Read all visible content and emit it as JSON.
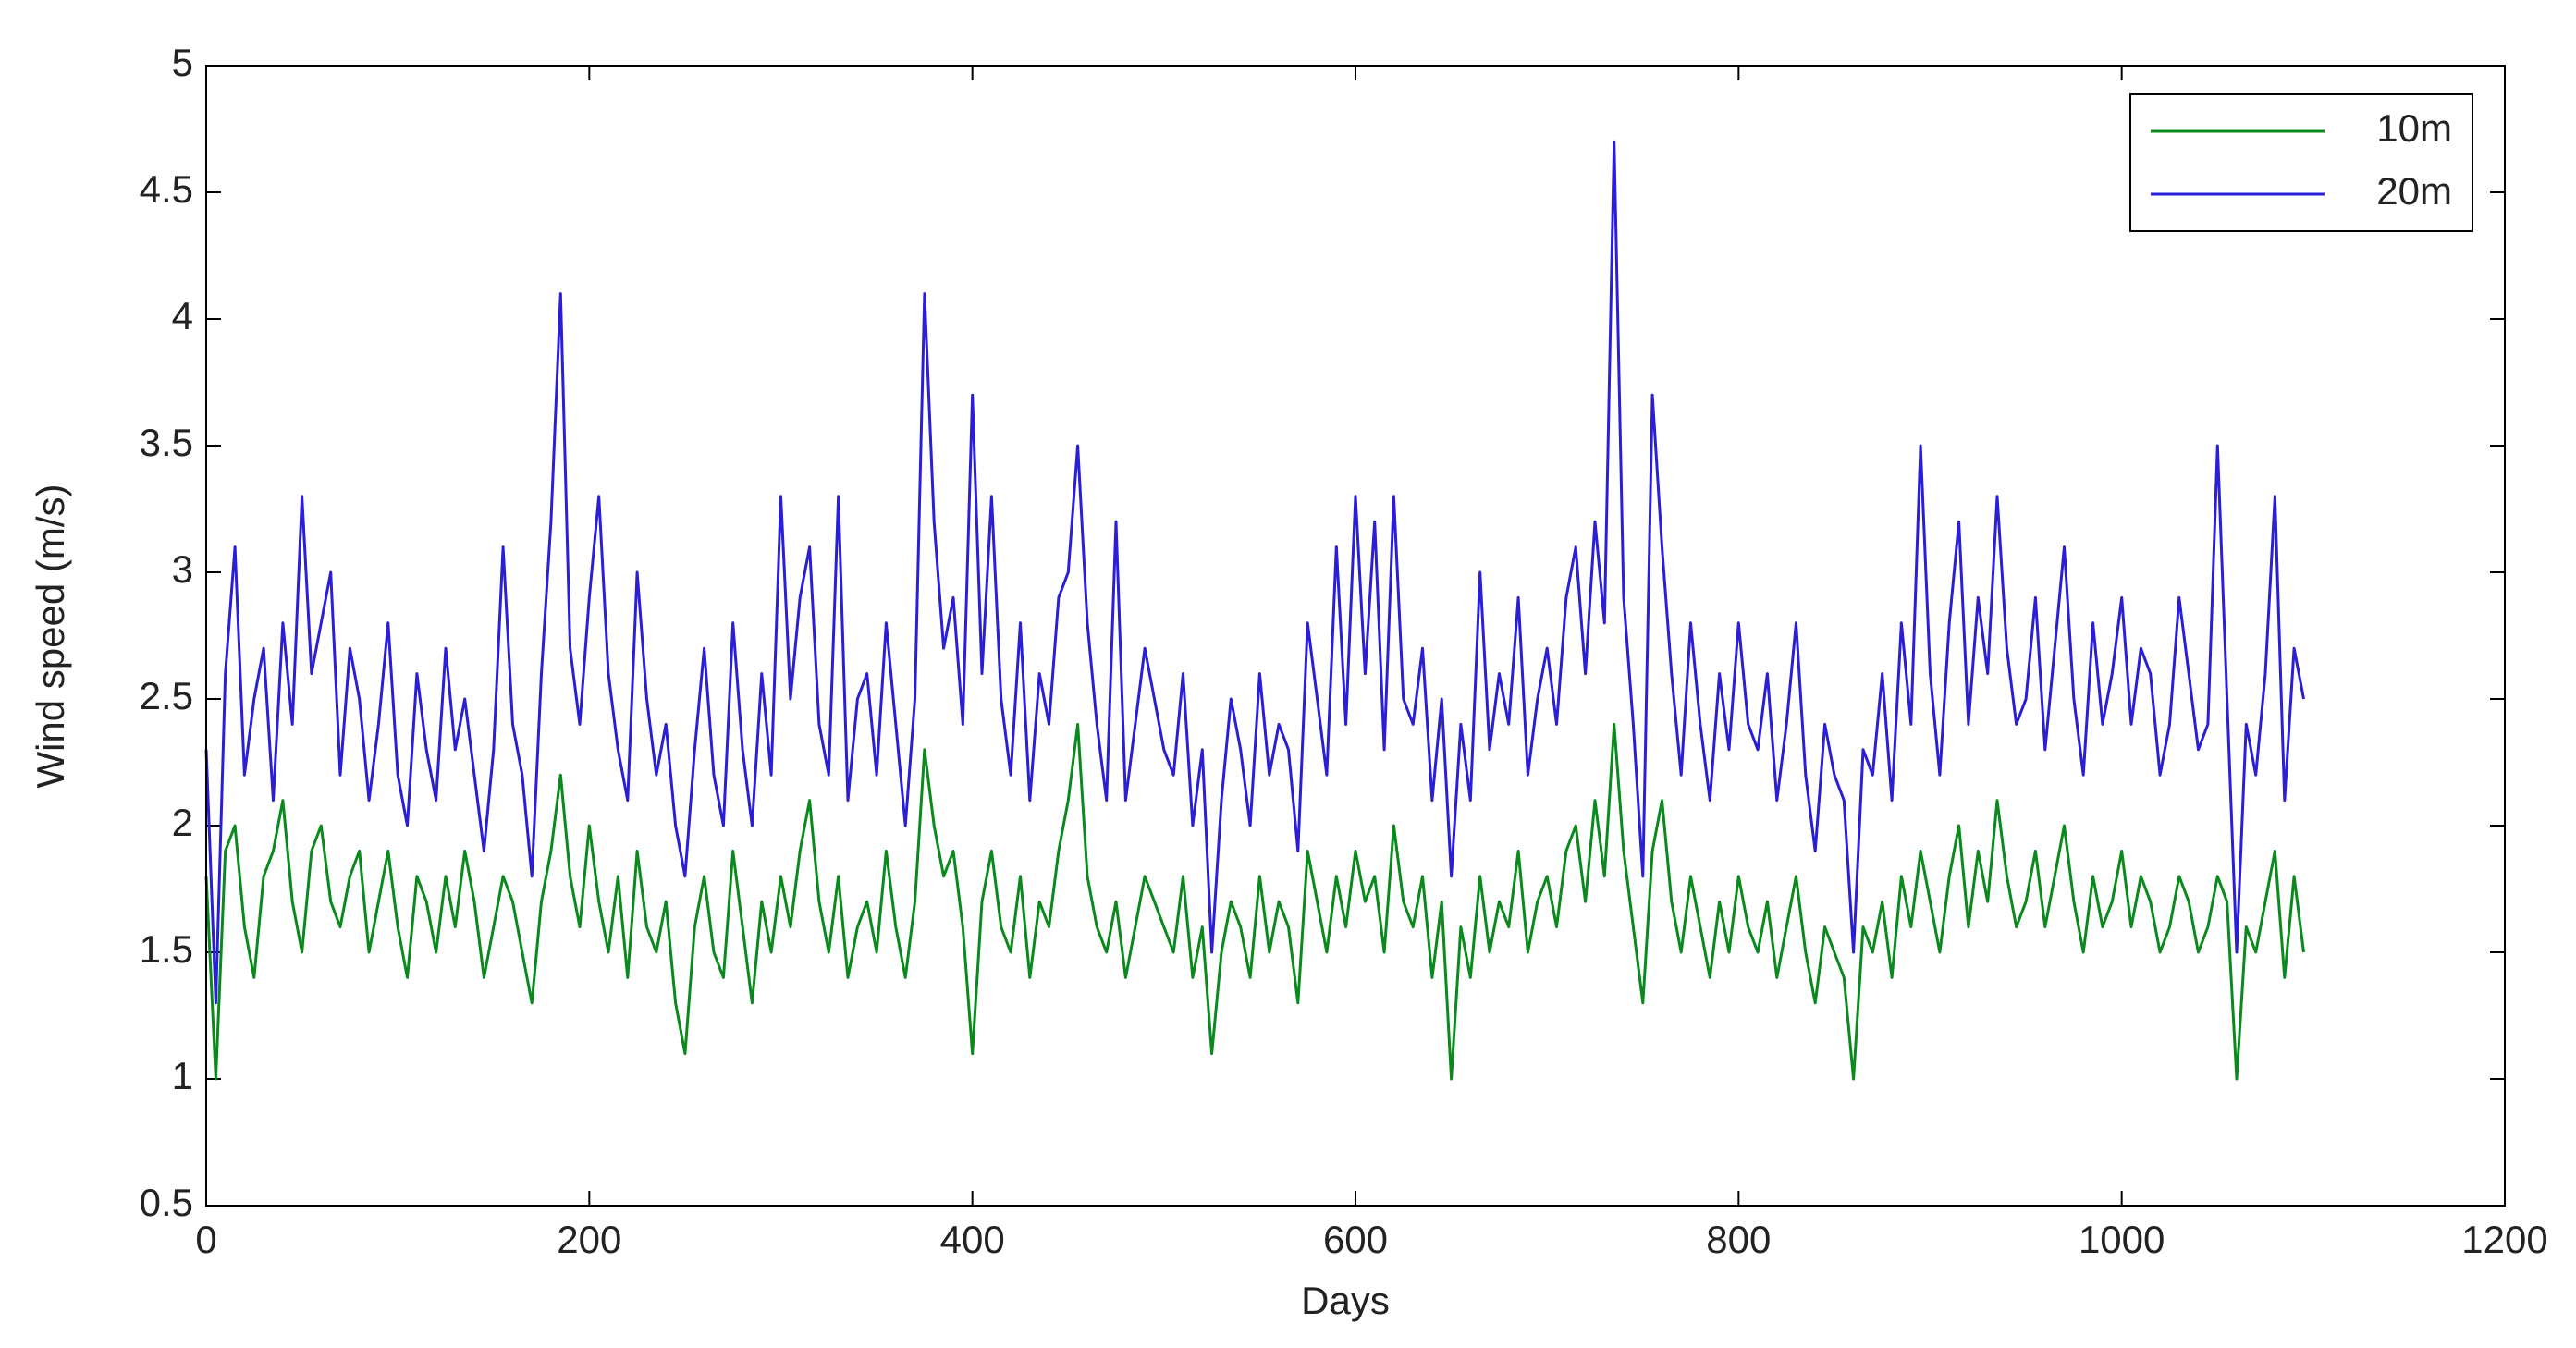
{
  "chart_data": {
    "type": "line",
    "xlabel": "Days",
    "ylabel": "Wind speed (m/s)",
    "x": [
      0,
      5,
      10,
      15,
      20,
      25,
      30,
      35,
      40,
      45,
      50,
      55,
      60,
      65,
      70,
      75,
      80,
      85,
      90,
      95,
      100,
      105,
      110,
      115,
      120,
      125,
      130,
      135,
      140,
      145,
      150,
      155,
      160,
      165,
      170,
      175,
      180,
      185,
      190,
      195,
      200,
      205,
      210,
      215,
      220,
      225,
      230,
      235,
      240,
      245,
      250,
      255,
      260,
      265,
      270,
      275,
      280,
      285,
      290,
      295,
      300,
      305,
      310,
      315,
      320,
      325,
      330,
      335,
      340,
      345,
      350,
      355,
      360,
      365,
      370,
      375,
      380,
      385,
      390,
      395,
      400,
      405,
      410,
      415,
      420,
      425,
      430,
      435,
      440,
      445,
      450,
      455,
      460,
      465,
      470,
      475,
      480,
      485,
      490,
      495,
      500,
      505,
      510,
      515,
      520,
      525,
      530,
      535,
      540,
      545,
      550,
      555,
      560,
      565,
      570,
      575,
      580,
      585,
      590,
      595,
      600,
      605,
      610,
      615,
      620,
      625,
      630,
      635,
      640,
      645,
      650,
      655,
      660,
      665,
      670,
      675,
      680,
      685,
      690,
      695,
      700,
      705,
      710,
      715,
      720,
      725,
      730,
      735,
      740,
      745,
      750,
      755,
      760,
      765,
      770,
      775,
      780,
      785,
      790,
      795,
      800,
      805,
      810,
      815,
      820,
      825,
      830,
      835,
      840,
      845,
      850,
      855,
      860,
      865,
      870,
      875,
      880,
      885,
      890,
      895,
      900,
      905,
      910,
      915,
      920,
      925,
      930,
      935,
      940,
      945,
      950,
      955,
      960,
      965,
      970,
      975,
      980,
      985,
      990,
      995,
      1000,
      1005,
      1010,
      1015,
      1020,
      1025,
      1030,
      1035,
      1040,
      1045,
      1050,
      1055,
      1060,
      1065,
      1070,
      1075,
      1080,
      1085,
      1090,
      1095
    ],
    "series": [
      {
        "name": "10m",
        "color": "#0a8a1c",
        "values": [
          1.8,
          1.0,
          1.9,
          2.0,
          1.6,
          1.4,
          1.8,
          1.9,
          2.1,
          1.7,
          1.5,
          1.9,
          2.0,
          1.7,
          1.6,
          1.8,
          1.9,
          1.5,
          1.7,
          1.9,
          1.6,
          1.4,
          1.8,
          1.7,
          1.5,
          1.8,
          1.6,
          1.9,
          1.7,
          1.4,
          1.6,
          1.8,
          1.7,
          1.5,
          1.3,
          1.7,
          1.9,
          2.2,
          1.8,
          1.6,
          2.0,
          1.7,
          1.5,
          1.8,
          1.4,
          1.9,
          1.6,
          1.5,
          1.7,
          1.3,
          1.1,
          1.6,
          1.8,
          1.5,
          1.4,
          1.9,
          1.6,
          1.3,
          1.7,
          1.5,
          1.8,
          1.6,
          1.9,
          2.1,
          1.7,
          1.5,
          1.8,
          1.4,
          1.6,
          1.7,
          1.5,
          1.9,
          1.6,
          1.4,
          1.7,
          2.3,
          2.0,
          1.8,
          1.9,
          1.6,
          1.1,
          1.7,
          1.9,
          1.6,
          1.5,
          1.8,
          1.4,
          1.7,
          1.6,
          1.9,
          2.1,
          2.4,
          1.8,
          1.6,
          1.5,
          1.7,
          1.4,
          1.6,
          1.8,
          1.7,
          1.6,
          1.5,
          1.8,
          1.4,
          1.6,
          1.1,
          1.5,
          1.7,
          1.6,
          1.4,
          1.8,
          1.5,
          1.7,
          1.6,
          1.3,
          1.9,
          1.7,
          1.5,
          1.8,
          1.6,
          1.9,
          1.7,
          1.8,
          1.5,
          2.0,
          1.7,
          1.6,
          1.8,
          1.4,
          1.7,
          1.0,
          1.6,
          1.4,
          1.8,
          1.5,
          1.7,
          1.6,
          1.9,
          1.5,
          1.7,
          1.8,
          1.6,
          1.9,
          2.0,
          1.7,
          2.1,
          1.8,
          2.4,
          1.9,
          1.6,
          1.3,
          1.9,
          2.1,
          1.7,
          1.5,
          1.8,
          1.6,
          1.4,
          1.7,
          1.5,
          1.8,
          1.6,
          1.5,
          1.7,
          1.4,
          1.6,
          1.8,
          1.5,
          1.3,
          1.6,
          1.5,
          1.4,
          1.0,
          1.6,
          1.5,
          1.7,
          1.4,
          1.8,
          1.6,
          1.9,
          1.7,
          1.5,
          1.8,
          2.0,
          1.6,
          1.9,
          1.7,
          2.1,
          1.8,
          1.6,
          1.7,
          1.9,
          1.6,
          1.8,
          2.0,
          1.7,
          1.5,
          1.8,
          1.6,
          1.7,
          1.9,
          1.6,
          1.8,
          1.7,
          1.5,
          1.6,
          1.8,
          1.7,
          1.5,
          1.6,
          1.8,
          1.7,
          1.0,
          1.6,
          1.5,
          1.7,
          1.9,
          1.4,
          1.8,
          1.5
        ]
      },
      {
        "name": "20m",
        "color": "#2a1fd6",
        "values": [
          2.3,
          1.3,
          2.6,
          3.1,
          2.2,
          2.5,
          2.7,
          2.1,
          2.8,
          2.4,
          3.3,
          2.6,
          2.8,
          3.0,
          2.2,
          2.7,
          2.5,
          2.1,
          2.4,
          2.8,
          2.2,
          2.0,
          2.6,
          2.3,
          2.1,
          2.7,
          2.3,
          2.5,
          2.2,
          1.9,
          2.3,
          3.1,
          2.4,
          2.2,
          1.8,
          2.6,
          3.2,
          4.1,
          2.7,
          2.4,
          2.9,
          3.3,
          2.6,
          2.3,
          2.1,
          3.0,
          2.5,
          2.2,
          2.4,
          2.0,
          1.8,
          2.3,
          2.7,
          2.2,
          2.0,
          2.8,
          2.3,
          2.0,
          2.6,
          2.2,
          3.3,
          2.5,
          2.9,
          3.1,
          2.4,
          2.2,
          3.3,
          2.1,
          2.5,
          2.6,
          2.2,
          2.8,
          2.4,
          2.0,
          2.5,
          4.1,
          3.2,
          2.7,
          2.9,
          2.4,
          3.7,
          2.6,
          3.3,
          2.5,
          2.2,
          2.8,
          2.1,
          2.6,
          2.4,
          2.9,
          3.0,
          3.5,
          2.8,
          2.4,
          2.1,
          3.2,
          2.1,
          2.4,
          2.7,
          2.5,
          2.3,
          2.2,
          2.6,
          2.0,
          2.3,
          1.5,
          2.1,
          2.5,
          2.3,
          2.0,
          2.6,
          2.2,
          2.4,
          2.3,
          1.9,
          2.8,
          2.5,
          2.2,
          3.1,
          2.4,
          3.3,
          2.6,
          3.2,
          2.3,
          3.3,
          2.5,
          2.4,
          2.7,
          2.1,
          2.5,
          1.8,
          2.4,
          2.1,
          3.0,
          2.3,
          2.6,
          2.4,
          2.9,
          2.2,
          2.5,
          2.7,
          2.4,
          2.9,
          3.1,
          2.6,
          3.2,
          2.8,
          4.7,
          2.9,
          2.4,
          1.8,
          3.7,
          3.1,
          2.6,
          2.2,
          2.8,
          2.4,
          2.1,
          2.6,
          2.3,
          2.8,
          2.4,
          2.3,
          2.6,
          2.1,
          2.4,
          2.8,
          2.2,
          1.9,
          2.4,
          2.2,
          2.1,
          1.5,
          2.3,
          2.2,
          2.6,
          2.1,
          2.8,
          2.4,
          3.5,
          2.6,
          2.2,
          2.8,
          3.2,
          2.4,
          2.9,
          2.6,
          3.3,
          2.7,
          2.4,
          2.5,
          2.9,
          2.3,
          2.7,
          3.1,
          2.5,
          2.2,
          2.8,
          2.4,
          2.6,
          2.9,
          2.4,
          2.7,
          2.6,
          2.2,
          2.4,
          2.9,
          2.6,
          2.3,
          2.4,
          3.5,
          2.5,
          1.5,
          2.4,
          2.2,
          2.6,
          3.3,
          2.1,
          2.7,
          2.5
        ]
      }
    ],
    "xlim": [
      0,
      1200
    ],
    "xticks": [
      0,
      200,
      400,
      600,
      800,
      1000,
      1200
    ],
    "ylim": [
      0.5,
      5
    ],
    "yticks": [
      0.5,
      1,
      1.5,
      2,
      2.5,
      3,
      3.5,
      4,
      4.5,
      5
    ],
    "grid": false,
    "legend": "upper-right"
  }
}
